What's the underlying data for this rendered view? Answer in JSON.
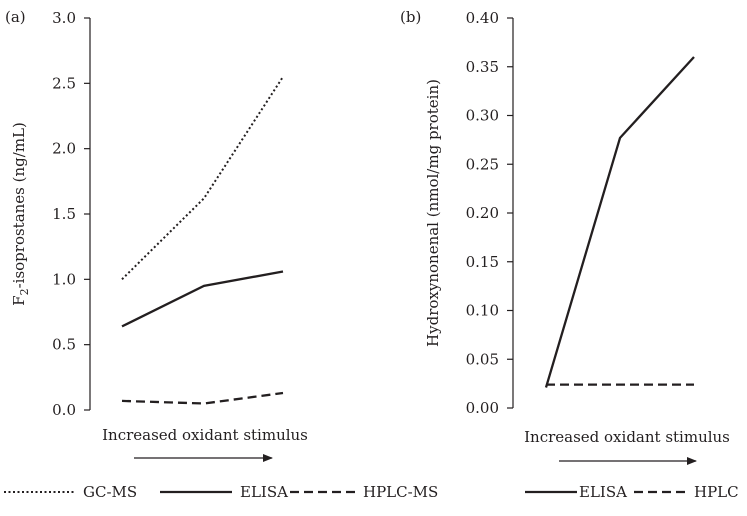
{
  "chart_data": [
    {
      "type": "line",
      "panel_label": "(a)",
      "ylabel_main": "F",
      "ylabel_sub": "2",
      "ylabel_rest": "-isoprostanes (ng/mL)",
      "xlabel": "Increased oxidant stimulus",
      "ylim": [
        0,
        3.0
      ],
      "yticks": [
        "0.0",
        "0.5",
        "1.0",
        "1.5",
        "2.0",
        "2.5",
        "3.0"
      ],
      "x": [
        1,
        2,
        3
      ],
      "series": [
        {
          "name": "GC-MS",
          "style": "dotted",
          "values": [
            1.0,
            1.62,
            2.55
          ]
        },
        {
          "name": "ELISA",
          "style": "solid",
          "values": [
            0.64,
            0.95,
            1.06
          ]
        },
        {
          "name": "HPLC-MS",
          "style": "dashed",
          "values": [
            0.07,
            0.05,
            0.13
          ]
        }
      ]
    },
    {
      "type": "line",
      "panel_label": "(b)",
      "ylabel": "Hydroxynonenal (nmol/mg protein)",
      "xlabel": "Increased oxidant stimulus",
      "ylim": [
        0,
        0.4
      ],
      "yticks": [
        "0.00",
        "0.05",
        "0.10",
        "0.15",
        "0.20",
        "0.25",
        "0.30",
        "0.35",
        "0.40"
      ],
      "x": [
        1,
        2,
        3
      ],
      "series": [
        {
          "name": "ELISA",
          "style": "solid",
          "values": [
            0.021,
            0.277,
            0.36
          ]
        },
        {
          "name": "HPLC",
          "style": "dashed",
          "values": [
            0.024,
            0.024,
            0.024
          ]
        }
      ]
    }
  ],
  "colors": {
    "ink": "#231f20",
    "background": "#ffffff"
  }
}
